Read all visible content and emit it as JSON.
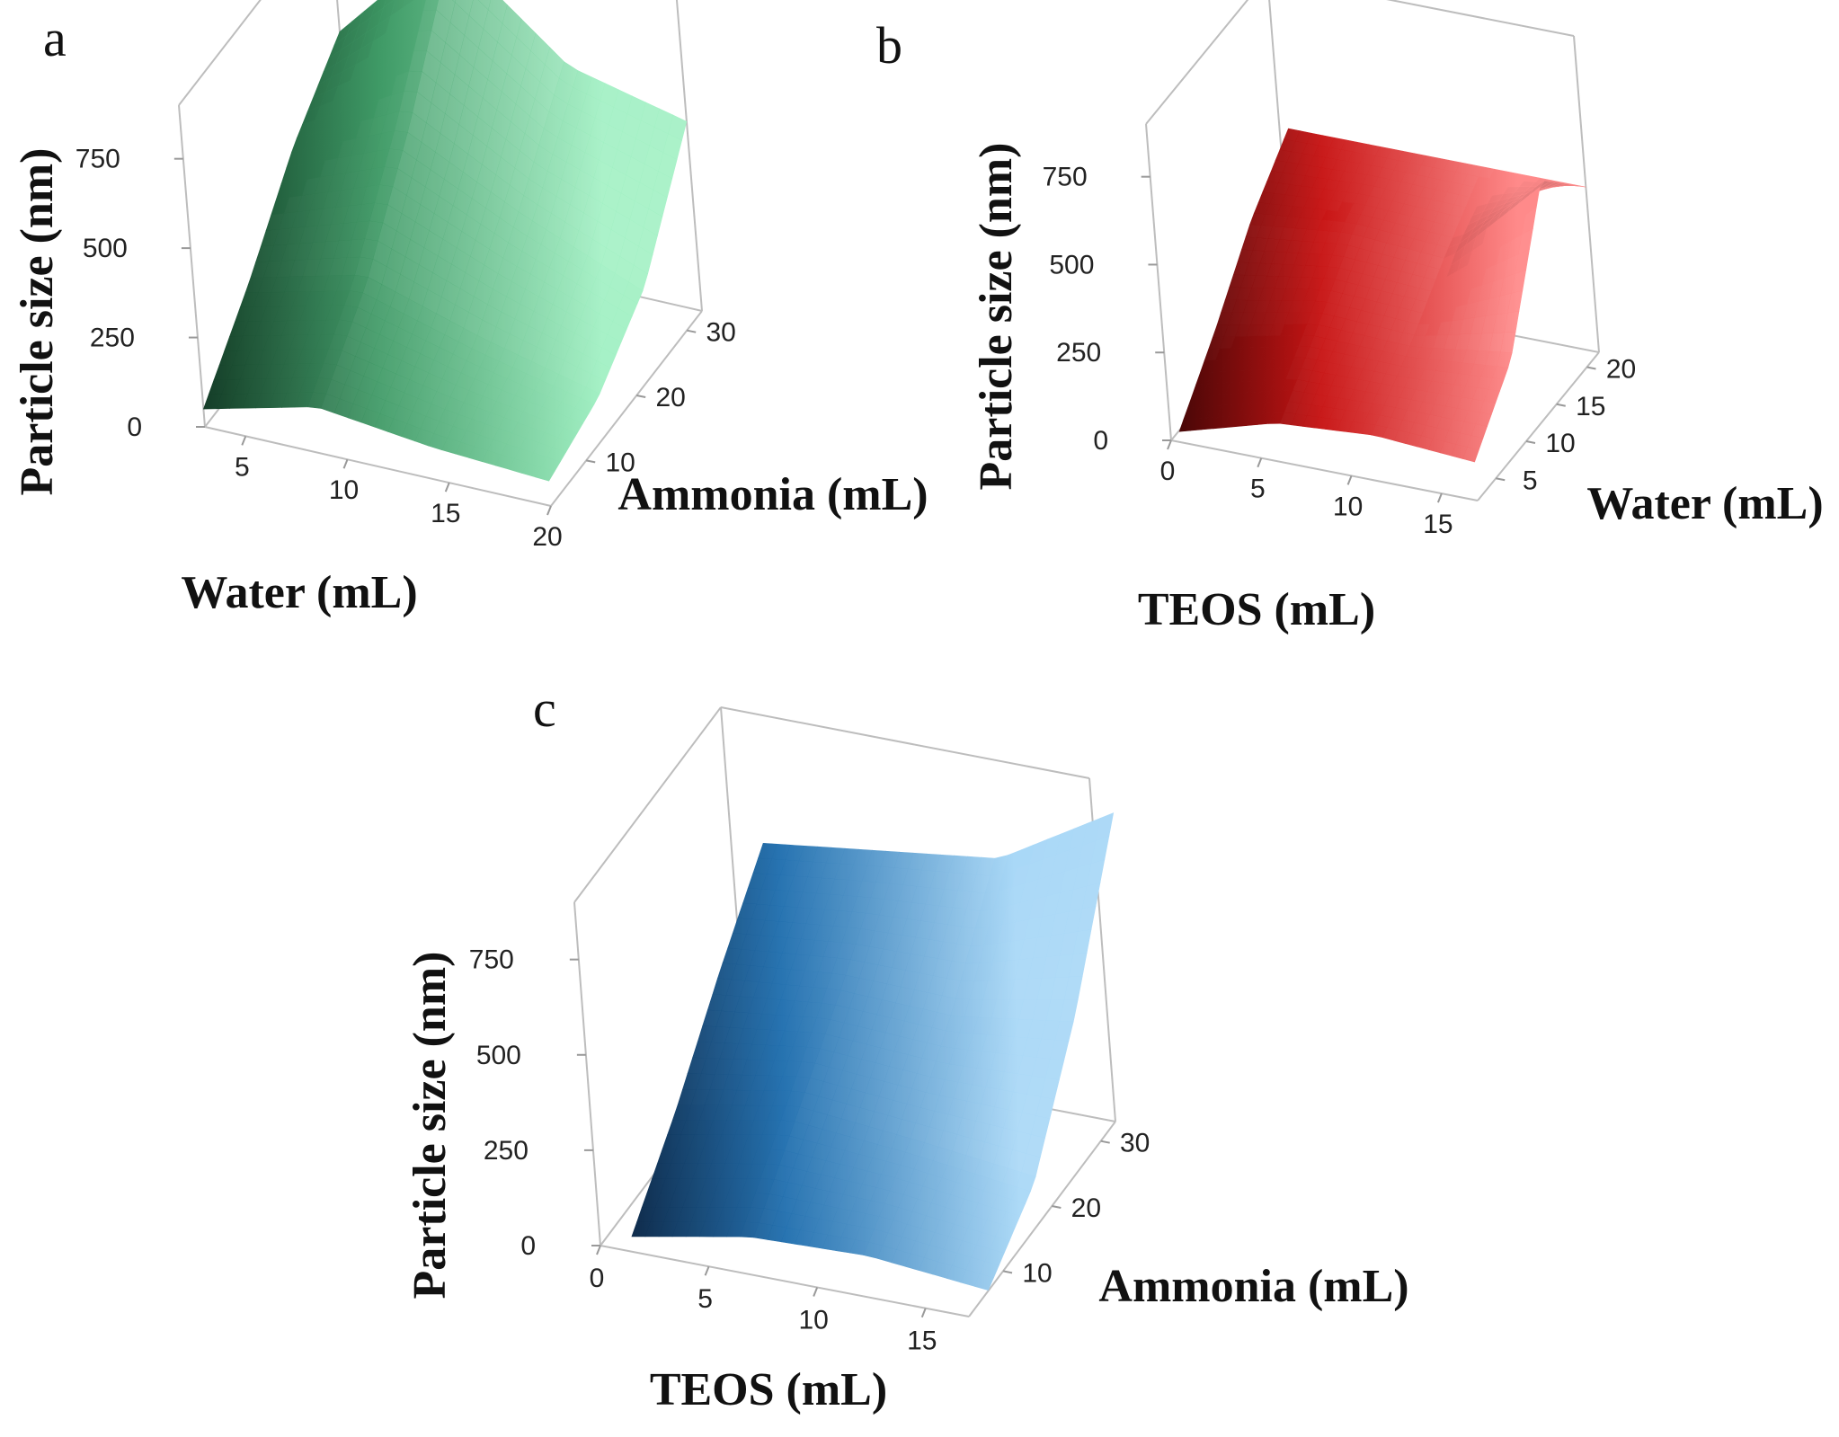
{
  "chart_data": [
    {
      "panel": "a",
      "type": "surface",
      "title": "",
      "xlabel": "Water (mL)",
      "ylabel": "Ammonia (mL)",
      "zlabel": "Particle size (nm)",
      "xlim": [
        3,
        20
      ],
      "ylim": [
        3,
        33
      ],
      "zlim": [
        0,
        900
      ],
      "x_ticks": [
        5,
        10,
        15,
        20
      ],
      "y_ticks": [
        10,
        20,
        30
      ],
      "z_ticks": [
        0,
        250,
        500,
        750
      ],
      "x_tick_labels": [
        "5",
        "10",
        "15",
        "20"
      ],
      "y_tick_labels": [
        "10",
        "20",
        "30"
      ],
      "z_tick_labels": [
        "0",
        "250",
        "500",
        "750"
      ],
      "x": [
        3,
        9,
        15,
        20
      ],
      "y": [
        3,
        13,
        23,
        33
      ],
      "z": [
        [
          50,
          220,
          420,
          560
        ],
        [
          130,
          300,
          560,
          880
        ],
        [
          90,
          200,
          390,
          610
        ],
        [
          70,
          120,
          250,
          530
        ]
      ],
      "colors": {
        "light": "#9ff0c2",
        "mid": "#3f9a66",
        "dark": "#0d3520"
      }
    },
    {
      "panel": "b",
      "type": "surface",
      "title": "",
      "xlabel": "TEOS (mL)",
      "ylabel": "Water (mL)",
      "zlabel": "Particle size (nm)",
      "xlim": [
        0,
        17
      ],
      "ylim": [
        2,
        22
      ],
      "zlim": [
        0,
        900
      ],
      "x_ticks": [
        0,
        5,
        10,
        15
      ],
      "y_ticks": [
        5,
        10,
        15,
        20
      ],
      "z_ticks": [
        0,
        250,
        500,
        750
      ],
      "x_tick_labels": [
        "0",
        "5",
        "10",
        "15"
      ],
      "y_tick_labels": [
        "5",
        "10",
        "15",
        "20"
      ],
      "z_tick_labels": [
        "0",
        "250",
        "500",
        "750"
      ],
      "x": [
        0.5,
        6,
        11,
        17
      ],
      "y": [
        2,
        8.5,
        15,
        22
      ],
      "z": [
        [
          30,
          180,
          350,
          470
        ],
        [
          110,
          240,
          380,
          470
        ],
        [
          130,
          230,
          360,
          470
        ],
        [
          110,
          260,
          630,
          470
        ]
      ],
      "colors": {
        "light": "#ff8a8a",
        "mid": "#c81414",
        "dark": "#3a0505"
      }
    },
    {
      "panel": "c",
      "type": "surface",
      "title": "",
      "xlabel": "TEOS (mL)",
      "ylabel": "Ammonia (mL)",
      "zlabel": "Particle size (nm)",
      "xlim": [
        0,
        17
      ],
      "ylim": [
        3,
        33
      ],
      "zlim": [
        0,
        900
      ],
      "x_ticks": [
        0,
        5,
        10,
        15
      ],
      "y_ticks": [
        10,
        20,
        30
      ],
      "z_ticks": [
        0,
        250,
        500,
        750
      ],
      "x_tick_labels": [
        "0",
        "5",
        "10",
        "15"
      ],
      "y_tick_labels": [
        "10",
        "20",
        "30"
      ],
      "z_tick_labels": [
        "0",
        "250",
        "500",
        "750"
      ],
      "x": [
        1.5,
        7,
        12.5,
        18
      ],
      "y": [
        3,
        13,
        23,
        33
      ],
      "z": [
        [
          40,
          200,
          390,
          560
        ],
        [
          100,
          260,
          420,
          600
        ],
        [
          110,
          230,
          410,
          640
        ],
        [
          80,
          190,
          460,
          820
        ]
      ],
      "colors": {
        "light": "#a9d8f7",
        "mid": "#1f6eae",
        "dark": "#04152e"
      }
    }
  ]
}
